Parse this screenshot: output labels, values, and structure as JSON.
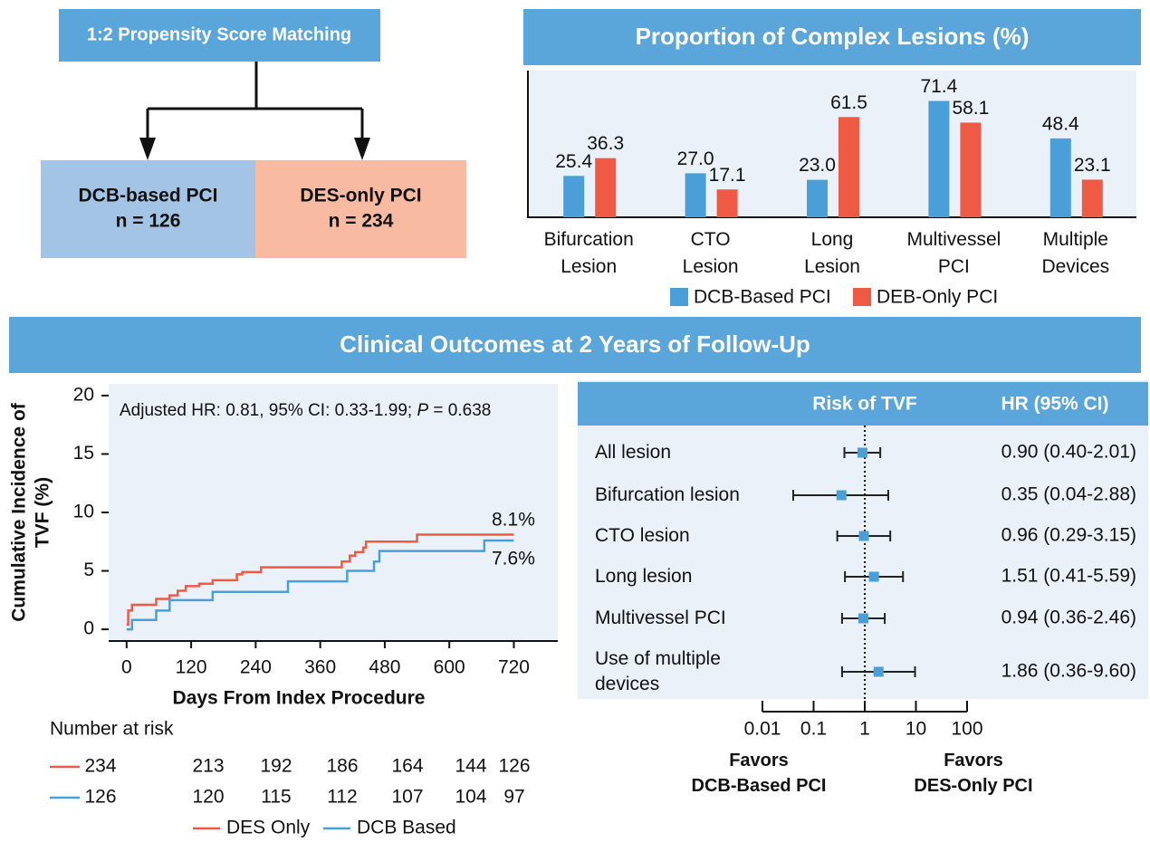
{
  "flow": {
    "title": "1:2 Propensity Score Matching",
    "groups": [
      {
        "name": "DCB-based PCI",
        "n_label": "n = 126",
        "color": "#a4c4e6"
      },
      {
        "name": "DES-only PCI",
        "n_label": "n = 234",
        "color": "#f8bba2"
      }
    ]
  },
  "section_title": "Clinical Outcomes at 2 Years of Follow-Up",
  "chart_data": [
    {
      "type": "bar",
      "title": "Proportion of Complex Lesions (%)",
      "categories": [
        "Bifurcation Lesion",
        "CTO Lesion",
        "Long Lesion",
        "Multivessel PCI",
        "Multiple Devices"
      ],
      "ylim": [
        0,
        90
      ],
      "series": [
        {
          "name": "DCB-Based PCI",
          "color": "#4a9fd8",
          "values": [
            25.4,
            27.0,
            23.0,
            71.4,
            48.4
          ],
          "value_labels": [
            "25.4",
            "27.0",
            "23.0",
            "71.4",
            "48.4"
          ]
        },
        {
          "name": "DEB-Only PCI",
          "color": "#ef5a45",
          "values": [
            36.3,
            17.1,
            61.5,
            58.1,
            23.1
          ],
          "value_labels": [
            "36.3",
            "17.1",
            "61.5",
            "58.1",
            "23.1"
          ]
        }
      ]
    },
    {
      "type": "line",
      "step": true,
      "ylabel": [
        "Cumulative Incidence of",
        "TVF (%)"
      ],
      "xlabel": "Days From Index Procedure",
      "annotation_parts": [
        "Adjusted HR: 0.81, 95% CI: 0.33-1.99; ",
        "P",
        " = 0.638"
      ],
      "xlim": [
        -30,
        800
      ],
      "ylim": [
        -1,
        21
      ],
      "xticks": [
        0,
        120,
        240,
        360,
        480,
        600,
        720
      ],
      "yticks": [
        0,
        5,
        10,
        15,
        20
      ],
      "series": [
        {
          "name": "DES Only",
          "color": "#ef5a45",
          "end_label": "8.1%",
          "x": [
            0,
            3,
            10,
            55,
            80,
            95,
            110,
            135,
            160,
            205,
            215,
            250,
            400,
            415,
            425,
            440,
            445,
            540,
            720
          ],
          "values": [
            0.4,
            1.6,
            2.1,
            2.6,
            2.9,
            3.3,
            3.7,
            3.9,
            4.2,
            4.7,
            4.9,
            5.3,
            5.8,
            6.3,
            6.6,
            7.0,
            7.5,
            8.1,
            8.1
          ]
        },
        {
          "name": "DCB Based",
          "color": "#4a9fd8",
          "end_label": "7.6%",
          "x": [
            0,
            10,
            55,
            80,
            160,
            300,
            410,
            460,
            470,
            665,
            720
          ],
          "values": [
            0,
            0.8,
            1.6,
            2.5,
            3.2,
            4.1,
            5.0,
            5.8,
            6.7,
            7.6,
            7.6
          ]
        }
      ],
      "risk_table_title": "Number at risk",
      "at_risk": [
        [
          234,
          213,
          192,
          186,
          164,
          144,
          126
        ],
        [
          126,
          120,
          115,
          112,
          107,
          104,
          97
        ]
      ]
    },
    {
      "type": "forest",
      "log_scale": true,
      "headers": [
        "Risk of TVF",
        "HR (95% CI)"
      ],
      "categories": [
        "All lesion",
        "Bifurcation lesion",
        "CTO lesion",
        "Long lesion",
        "Multivessel PCI",
        "Use of multiple devices"
      ],
      "values": [
        0.9,
        0.35,
        0.96,
        1.51,
        0.94,
        1.86
      ],
      "lower": [
        0.4,
        0.04,
        0.29,
        0.41,
        0.36,
        0.36
      ],
      "upper": [
        2.01,
        2.88,
        3.15,
        5.59,
        2.46,
        9.6
      ],
      "value_labels": [
        "0.90 (0.40-2.01)",
        "0.35 (0.04-2.88)",
        "0.96 (0.29-3.15)",
        "1.51 (0.41-5.59)",
        "0.94 (0.36-2.46)",
        "1.86 (0.36-9.60)"
      ],
      "color": "#4a9fd8",
      "xlim": [
        0.01,
        100
      ],
      "xticks": [
        0.01,
        0.1,
        1,
        10,
        100
      ],
      "reference_line": 1,
      "favors": [
        "Favors DCB-Based PCI",
        "Favors DES-Only PCI"
      ]
    }
  ]
}
